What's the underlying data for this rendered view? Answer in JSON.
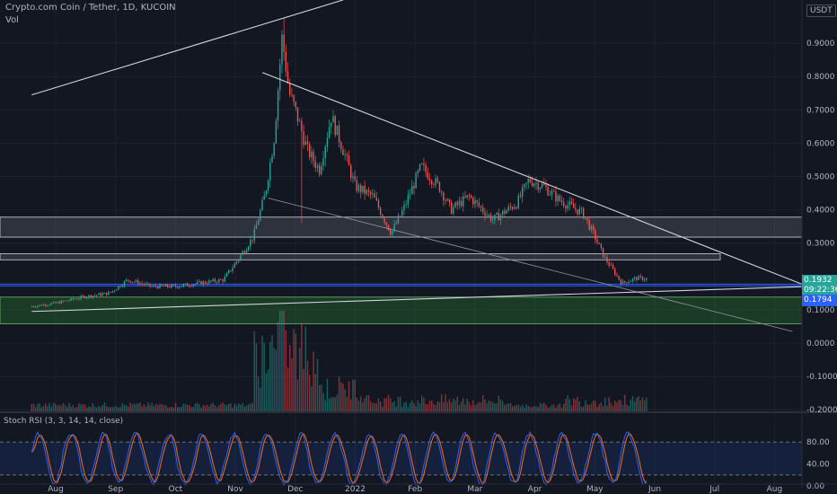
{
  "header": {
    "symbol_line": "Crypto.com Coin / Tether, 1D, KUCOIN",
    "volume_label": "Vol",
    "currency_badge": "USDT"
  },
  "price_axis": {
    "ticks": [
      {
        "label": "0.9000",
        "value": 0.9
      },
      {
        "label": "0.8000",
        "value": 0.8
      },
      {
        "label": "0.7000",
        "value": 0.7
      },
      {
        "label": "0.6000",
        "value": 0.6
      },
      {
        "label": "0.5000",
        "value": 0.5
      },
      {
        "label": "0.4000",
        "value": 0.4
      },
      {
        "label": "0.3000",
        "value": 0.3
      },
      {
        "label": "0.1000",
        "value": 0.1
      },
      {
        "label": "0.0000",
        "value": 0.0
      },
      {
        "label": "-0.1000",
        "value": -0.1
      },
      {
        "label": "-0.2000",
        "value": -0.2
      }
    ],
    "current_price": "0.1932",
    "countdown": "09:22:36",
    "low_marker": "0.1794"
  },
  "time_axis": {
    "labels": [
      {
        "label": "Aug",
        "t": 0
      },
      {
        "label": "Sep",
        "t": 1
      },
      {
        "label": "Oct",
        "t": 2
      },
      {
        "label": "Nov",
        "t": 3
      },
      {
        "label": "Dec",
        "t": 4
      },
      {
        "label": "2022",
        "t": 5
      },
      {
        "label": "Feb",
        "t": 6
      },
      {
        "label": "Mar",
        "t": 7
      },
      {
        "label": "Apr",
        "t": 8
      },
      {
        "label": "May",
        "t": 9
      },
      {
        "label": "Jun",
        "t": 10
      },
      {
        "label": "Jul",
        "t": 11
      },
      {
        "label": "Aug",
        "t": 12
      }
    ]
  },
  "stoch_rsi": {
    "label": "Stoch RSI (3, 3, 14, 14, close)",
    "ticks": [
      "80.00",
      "40.00",
      "0.00"
    ],
    "upper_band": 80,
    "lower_band": 20
  },
  "colors": {
    "background": "#131722",
    "up": "#26a69a",
    "down": "#ef5350",
    "k_line": "#2962ff",
    "d_line": "#ff6d00",
    "zone_gray": "#787b86",
    "zone_green": "#1b5e20",
    "trendline": "#d1d4dc"
  },
  "chart_data": {
    "type": "candlestick",
    "title": "Crypto.com Coin / Tether, 1D, KUCOIN",
    "x_start": "Jul 2021",
    "y_range": [
      -0.2,
      1.0
    ],
    "price_path": [
      [
        -0.4,
        0.11
      ],
      [
        0,
        0.12
      ],
      [
        0.5,
        0.14
      ],
      [
        0.9,
        0.15
      ],
      [
        1.2,
        0.19
      ],
      [
        1.6,
        0.17
      ],
      [
        2.0,
        0.17
      ],
      [
        2.4,
        0.18
      ],
      [
        2.8,
        0.19
      ],
      [
        3.0,
        0.24
      ],
      [
        3.3,
        0.32
      ],
      [
        3.5,
        0.45
      ],
      [
        3.65,
        0.62
      ],
      [
        3.78,
        0.92
      ],
      [
        3.9,
        0.75
      ],
      [
        4.0,
        0.7
      ],
      [
        4.2,
        0.58
      ],
      [
        4.4,
        0.52
      ],
      [
        4.6,
        0.68
      ],
      [
        4.8,
        0.58
      ],
      [
        5.0,
        0.47
      ],
      [
        5.3,
        0.44
      ],
      [
        5.6,
        0.33
      ],
      [
        5.8,
        0.4
      ],
      [
        6.1,
        0.53
      ],
      [
        6.4,
        0.47
      ],
      [
        6.6,
        0.4
      ],
      [
        6.9,
        0.44
      ],
      [
        7.3,
        0.37
      ],
      [
        7.7,
        0.42
      ],
      [
        7.9,
        0.49
      ],
      [
        8.15,
        0.47
      ],
      [
        8.4,
        0.43
      ],
      [
        8.8,
        0.39
      ],
      [
        9.0,
        0.32
      ],
      [
        9.15,
        0.26
      ],
      [
        9.3,
        0.22
      ],
      [
        9.45,
        0.18
      ],
      [
        9.7,
        0.195
      ],
      [
        9.85,
        0.193
      ]
    ],
    "zones": [
      {
        "from": 0.318,
        "to": 0.378,
        "color": "gray"
      },
      {
        "from": 0.25,
        "to": 0.268,
        "color": "gray"
      },
      {
        "from": 0.058,
        "to": 0.138,
        "color": "green"
      }
    ],
    "horizontal_lines": [
      0.177,
      0.172
    ],
    "trendlines": [
      {
        "from": [
          -0.4,
          0.745
        ],
        "to": [
          4.8,
          1.03
        ]
      },
      {
        "from": [
          3.45,
          0.812
        ],
        "to": [
          12.6,
          0.167
        ]
      },
      {
        "from": [
          3.55,
          0.435
        ],
        "to": [
          12.3,
          0.035
        ]
      },
      {
        "from": [
          -0.4,
          0.095
        ],
        "to": [
          12.6,
          0.17
        ]
      }
    ]
  }
}
